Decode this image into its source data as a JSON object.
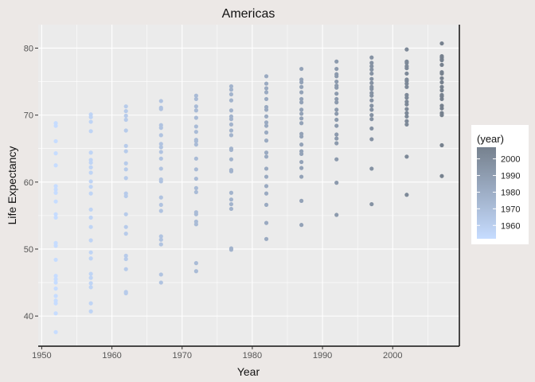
{
  "chart_data": {
    "type": "scatter",
    "title": "Americas",
    "xlabel": "Year",
    "ylabel": "Life Expectancy",
    "xlim": [
      1949.5,
      2009.5
    ],
    "ylim": [
      35.5,
      83.5
    ],
    "xticks": [
      1950,
      1960,
      1970,
      1980,
      1990,
      2000
    ],
    "yticks": [
      40,
      50,
      60,
      70,
      80
    ],
    "grid": true,
    "legend": {
      "title": "(year)",
      "placement": "right",
      "breaks": [
        1960,
        1970,
        1980,
        1990,
        2000
      ],
      "range": [
        1952,
        2007
      ],
      "color_low": "#c6dcff",
      "color_high": "#76818e"
    },
    "colors": {
      "background": "#ece8e6",
      "panel": "#ebebeb",
      "grid": "#ffffff"
    },
    "series": [
      {
        "x": 1952,
        "y": [
          37.6,
          40.4,
          41.9,
          42.3,
          43.0,
          44.1,
          45.0,
          45.5,
          46.0,
          48.4,
          50.5,
          50.9,
          54.7,
          55.2,
          57.1,
          58.4,
          58.9,
          59.4,
          62.5,
          64.3,
          66.1,
          68.4,
          68.8
        ]
      },
      {
        "x": 1957,
        "y": [
          40.7,
          41.9,
          44.3,
          44.9,
          45.7,
          46.3,
          48.6,
          49.5,
          51.3,
          53.3,
          54.7,
          55.9,
          58.3,
          59.3,
          60.1,
          61.4,
          62.2,
          62.9,
          63.3,
          64.4,
          67.6,
          69.0,
          69.7,
          70.1
        ]
      },
      {
        "x": 1962,
        "y": [
          43.4,
          43.6,
          47.0,
          48.5,
          49.0,
          52.3,
          53.3,
          55.2,
          57.9,
          58.3,
          60.6,
          61.9,
          62.8,
          64.6,
          65.4,
          67.7,
          69.3,
          69.9,
          70.6,
          71.3
        ]
      },
      {
        "x": 1967,
        "y": [
          45.0,
          46.2,
          50.7,
          51.4,
          51.9,
          55.7,
          56.6,
          57.7,
          60.1,
          60.4,
          62.0,
          63.5,
          64.5,
          65.2,
          65.7,
          67.0,
          68.1,
          68.5,
          70.9,
          71.1,
          72.1
        ]
      },
      {
        "x": 1972,
        "y": [
          46.7,
          47.9,
          53.7,
          54.1,
          55.2,
          55.5,
          58.5,
          59.1,
          60.5,
          61.9,
          63.5,
          65.6,
          66.1,
          66.3,
          67.5,
          68.3,
          69.6,
          70.7,
          71.3,
          72.4,
          72.9
        ]
      },
      {
        "x": 1977,
        "y": [
          49.9,
          50.1,
          56.0,
          56.7,
          57.4,
          58.4,
          61.6,
          61.8,
          63.4,
          64.8,
          65.0,
          67.0,
          67.7,
          68.6,
          69.4,
          69.8,
          70.7,
          72.2,
          73.1,
          73.8,
          74.3
        ]
      },
      {
        "x": 1982,
        "y": [
          51.5,
          53.9,
          56.6,
          58.3,
          59.4,
          60.8,
          62.0,
          63.8,
          64.4,
          66.2,
          67.4,
          68.4,
          68.9,
          69.8,
          70.8,
          71.2,
          72.4,
          73.4,
          74.0,
          74.7,
          75.8
        ]
      },
      {
        "x": 1987,
        "y": [
          53.6,
          57.2,
          60.8,
          62.1,
          63.0,
          64.2,
          64.6,
          65.6,
          66.8,
          67.2,
          68.8,
          69.5,
          70.2,
          70.8,
          71.9,
          72.4,
          73.4,
          74.2,
          74.9,
          75.3,
          76.9
        ]
      },
      {
        "x": 1992,
        "y": [
          55.1,
          59.9,
          63.4,
          65.8,
          66.5,
          67.1,
          68.4,
          69.3,
          70.2,
          70.8,
          71.9,
          72.4,
          73.2,
          74.1,
          74.4,
          75.0,
          75.8,
          76.1,
          76.9,
          78.0
        ]
      },
      {
        "x": 1997,
        "y": [
          56.7,
          62.0,
          66.4,
          68.0,
          69.4,
          70.0,
          70.8,
          71.4,
          72.2,
          72.9,
          73.3,
          73.9,
          74.2,
          74.8,
          75.4,
          76.2,
          76.8,
          77.3,
          77.8,
          78.6
        ]
      },
      {
        "x": 2002,
        "y": [
          58.1,
          63.8,
          68.6,
          69.1,
          69.8,
          70.3,
          70.9,
          71.6,
          72.0,
          72.6,
          73.0,
          74.2,
          74.7,
          75.1,
          75.3,
          76.2,
          77.0,
          77.3,
          77.8,
          78.0,
          79.8
        ]
      },
      {
        "x": 2007,
        "y": [
          60.9,
          65.5,
          70.0,
          70.3,
          71.0,
          71.4,
          72.4,
          72.8,
          72.9,
          73.0,
          73.7,
          74.2,
          74.9,
          75.5,
          76.2,
          76.4,
          77.5,
          78.2,
          78.3,
          78.6,
          78.8,
          80.7
        ]
      }
    ]
  }
}
